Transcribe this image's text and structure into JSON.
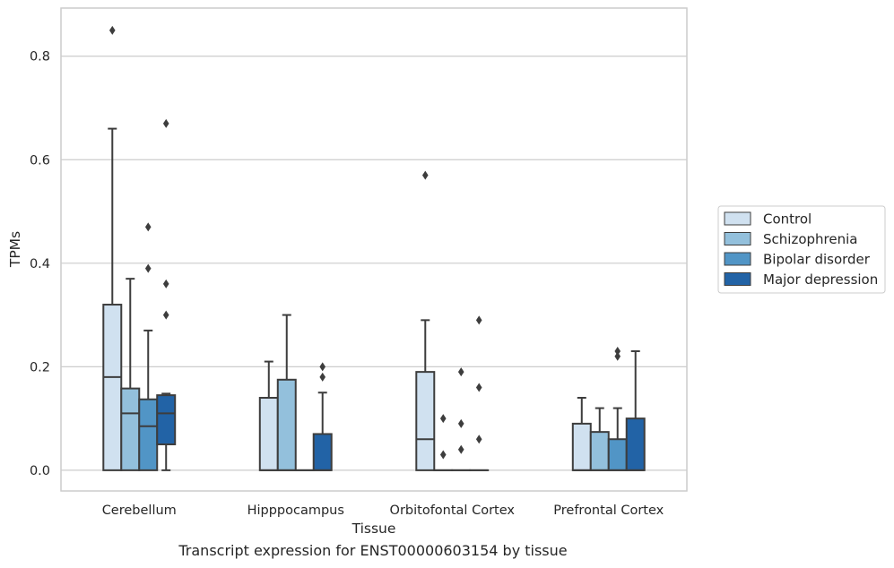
{
  "caption": "Transcript expression for ENST00000603154 by tissue",
  "chart_data": {
    "type": "box",
    "xlabel": "Tissue",
    "ylabel": "TPMs",
    "ylim": [
      -0.04,
      0.893
    ],
    "yticks": [
      0.0,
      0.2,
      0.4,
      0.6,
      0.8
    ],
    "ytick_labels": [
      "0.0",
      "0.2",
      "0.4",
      "0.6",
      "0.8"
    ],
    "grid": "horizontal",
    "legend_position": "right",
    "categories": [
      "Cerebellum",
      "Hipppocampus",
      "Orbitofontal Cortex",
      "Prefrontal Cortex"
    ],
    "series": [
      {
        "name": "Control",
        "color": "#d0e1f0",
        "boxes": [
          {
            "q1": 0.0,
            "median": 0.18,
            "q3": 0.32,
            "whisker_low": 0.0,
            "whisker_high": 0.66,
            "outliers": [
              0.85
            ]
          },
          {
            "q1": 0.0,
            "median": 0.0,
            "q3": 0.14,
            "whisker_low": 0.0,
            "whisker_high": 0.21,
            "outliers": []
          },
          {
            "q1": 0.0,
            "median": 0.06,
            "q3": 0.19,
            "whisker_low": 0.0,
            "whisker_high": 0.29,
            "outliers": [
              0.57
            ]
          },
          {
            "q1": 0.0,
            "median": 0.0,
            "q3": 0.09,
            "whisker_low": 0.0,
            "whisker_high": 0.14,
            "outliers": []
          }
        ]
      },
      {
        "name": "Schizophrenia",
        "color": "#93c0dc",
        "boxes": [
          {
            "q1": 0.0,
            "median": 0.11,
            "q3": 0.158,
            "whisker_low": 0.0,
            "whisker_high": 0.37,
            "outliers": []
          },
          {
            "q1": 0.0,
            "median": 0.0,
            "q3": 0.175,
            "whisker_low": 0.0,
            "whisker_high": 0.3,
            "outliers": []
          },
          {
            "q1": 0.0,
            "median": 0.0,
            "q3": 0.0,
            "whisker_low": 0.0,
            "whisker_high": 0.0,
            "outliers": [
              0.1,
              0.03
            ]
          },
          {
            "q1": 0.0,
            "median": 0.0,
            "q3": 0.074,
            "whisker_low": 0.0,
            "whisker_high": 0.12,
            "outliers": []
          }
        ]
      },
      {
        "name": "Bipolar disorder",
        "color": "#5195c6",
        "boxes": [
          {
            "q1": 0.0,
            "median": 0.085,
            "q3": 0.137,
            "whisker_low": 0.0,
            "whisker_high": 0.27,
            "outliers": [
              0.47,
              0.39
            ]
          },
          {
            "q1": 0.0,
            "median": 0.0,
            "q3": 0.0,
            "whisker_low": 0.0,
            "whisker_high": 0.0,
            "outliers": []
          },
          {
            "q1": 0.0,
            "median": 0.0,
            "q3": 0.0,
            "whisker_low": 0.0,
            "whisker_high": 0.0,
            "outliers": [
              0.19,
              0.09,
              0.04
            ]
          },
          {
            "q1": 0.0,
            "median": 0.0,
            "q3": 0.06,
            "whisker_low": 0.0,
            "whisker_high": 0.12,
            "outliers": [
              0.23,
              0.22
            ]
          }
        ]
      },
      {
        "name": "Major depression",
        "color": "#2263a6",
        "boxes": [
          {
            "q1": 0.05,
            "median": 0.11,
            "q3": 0.145,
            "whisker_low": 0.0,
            "whisker_high": 0.148,
            "outliers": [
              0.67,
              0.36,
              0.3
            ]
          },
          {
            "q1": 0.0,
            "median": 0.0,
            "q3": 0.07,
            "whisker_low": 0.0,
            "whisker_high": 0.15,
            "outliers": [
              0.2,
              0.18
            ]
          },
          {
            "q1": 0.0,
            "median": 0.0,
            "q3": 0.0,
            "whisker_low": 0.0,
            "whisker_high": 0.0,
            "outliers": [
              0.29,
              0.16,
              0.06
            ]
          },
          {
            "q1": 0.0,
            "median": 0.0,
            "q3": 0.1,
            "whisker_low": 0.0,
            "whisker_high": 0.23,
            "outliers": []
          }
        ]
      }
    ]
  }
}
